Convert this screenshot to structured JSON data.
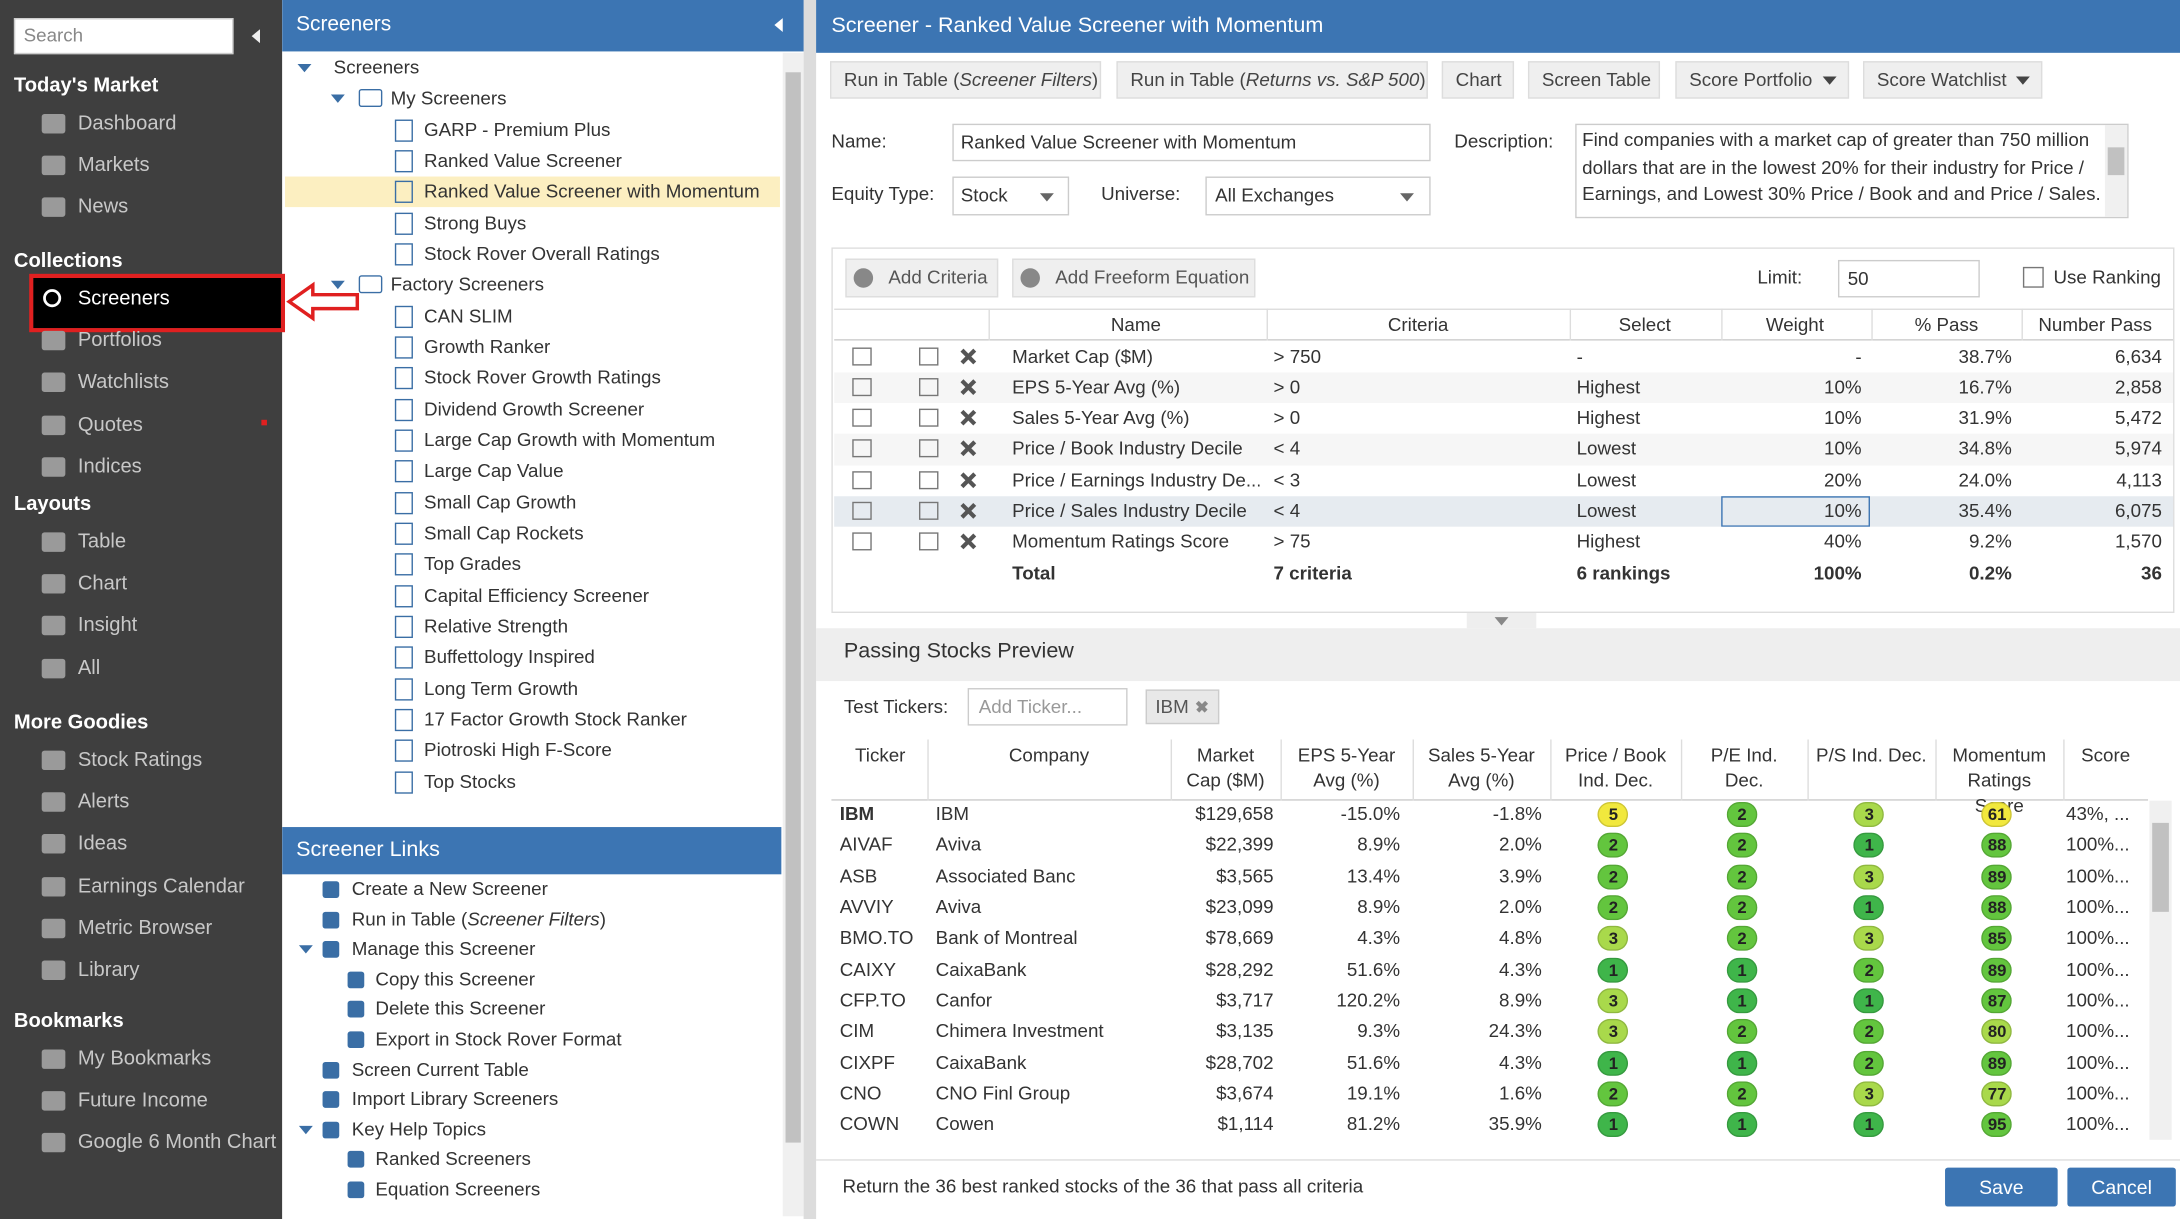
{
  "sidebar": {
    "search": "Search",
    "sections": [
      {
        "title": "Today's Market",
        "items": [
          "Dashboard",
          "Markets",
          "News"
        ]
      },
      {
        "title": "Collections",
        "items": [
          "Screeners",
          "Portfolios",
          "Watchlists",
          "Quotes",
          "Indices"
        ]
      },
      {
        "title": "Layouts",
        "items": [
          "Table",
          "Chart",
          "Insight",
          "All"
        ]
      },
      {
        "title": "More Goodies",
        "items": [
          "Stock Ratings",
          "Alerts",
          "Ideas",
          "Earnings Calendar",
          "Metric Browser",
          "Library"
        ]
      },
      {
        "title": "Bookmarks",
        "items": [
          "My Bookmarks",
          "Future Income",
          "Google 6 Month Chart"
        ]
      }
    ]
  },
  "screeners_panel": {
    "title": "Screeners",
    "root": "Screeners",
    "groups": [
      {
        "title": "My Screeners",
        "items": [
          "GARP - Premium Plus",
          "Ranked Value Screener",
          "Ranked Value Screener with Momentum",
          "Strong Buys",
          "Stock Rover Overall Ratings"
        ]
      },
      {
        "title": "Factory Screeners",
        "items": [
          "CAN SLIM",
          "Growth Ranker",
          "Stock Rover Growth Ratings",
          "Dividend Growth Screener",
          "Large Cap Growth with Momentum",
          "Large Cap Value",
          "Small Cap Growth",
          "Small Cap Rockets",
          "Top Grades",
          "Capital Efficiency Screener",
          "Relative Strength",
          "Buffettology Inspired",
          "Long Term Growth",
          "17 Factor Growth Stock Ranker",
          "Piotroski High F-Score",
          "Top Stocks"
        ]
      }
    ]
  },
  "links_panel": {
    "title": "Screener Links",
    "items": [
      {
        "text": "Create a New Screener"
      },
      {
        "text": [
          "Run in Table (",
          "Screener Filters",
          ")"
        ]
      },
      {
        "text": "Manage this Screener",
        "children": [
          "Copy this Screener",
          "Delete this Screener",
          "Export in Stock Rover Format"
        ]
      },
      {
        "text": "Screen Current Table"
      },
      {
        "text": "Import Library Screeners"
      },
      {
        "text": "Key Help Topics",
        "children": [
          "Ranked Screeners",
          "Equation Screeners"
        ]
      }
    ]
  },
  "main": {
    "title": "Screener - Ranked Value Screener with Momentum",
    "toolbar": [
      [
        "Run in Table (",
        "Screener Filters",
        ")"
      ],
      [
        "Run in Table (",
        "Returns vs. S&P 500",
        ")"
      ],
      "Chart",
      "Screen Table",
      "Score Portfolio",
      "Score Watchlist"
    ],
    "form": {
      "name_label": "Name:",
      "name": "Ranked Value Screener with Momentum",
      "equity_type_label": "Equity Type:",
      "equity_type": "Stock",
      "universe_label": "Universe:",
      "universe": "All Exchanges",
      "description_label": "Description:",
      "description": "Find companies with a market cap of greater than 750 million dollars that are in the lowest 20% for their industry for Price / Earnings, and Lowest 30% Price / Book and and Price / Sales."
    },
    "criteria": {
      "add_criteria": "Add Criteria",
      "add_equation": "Add Freeform Equation",
      "limit_label": "Limit:",
      "limit": "50",
      "use_ranking": "Use Ranking",
      "columns": [
        "Name",
        "Criteria",
        "Select",
        "Weight",
        "% Pass",
        "Number Pass"
      ],
      "rows": [
        [
          "Market Cap ($M)",
          "> 750",
          "-",
          "-",
          "38.7%",
          "6,634"
        ],
        [
          "EPS 5-Year Avg (%)",
          "> 0",
          "Highest",
          "10%",
          "16.7%",
          "2,858"
        ],
        [
          "Sales 5-Year Avg (%)",
          "> 0",
          "Highest",
          "10%",
          "31.9%",
          "5,472"
        ],
        [
          "Price / Book Industry Decile",
          "< 4",
          "Lowest",
          "10%",
          "34.8%",
          "5,974"
        ],
        [
          "Price / Earnings Industry De...",
          "< 3",
          "Lowest",
          "20%",
          "24.0%",
          "4,113"
        ],
        [
          "Price / Sales Industry Decile",
          "< 4",
          "Lowest",
          "10%",
          "35.4%",
          "6,075"
        ],
        [
          "Momentum Ratings Score",
          "> 75",
          "Highest",
          "40%",
          "9.2%",
          "1,570"
        ]
      ],
      "total": [
        "Total",
        "7 criteria",
        "6 rankings",
        "100%",
        "0.2%",
        "36"
      ]
    },
    "preview": {
      "title": "Passing Stocks Preview",
      "test_tickers_label": "Test Tickers:",
      "add_ticker": "Add Ticker...",
      "ticker_chip": "IBM",
      "columns": [
        "Ticker",
        "Company",
        "Market Cap ($M)",
        "EPS 5-Year Avg (%)",
        "Sales 5-Year Avg (%)",
        "Price / Book Ind. Dec.",
        "P/E Ind. Dec.",
        "P/S Ind. Dec.",
        "Momentum Ratings Score",
        "Score"
      ],
      "rows": [
        [
          "IBM",
          "IBM",
          "$129,658",
          "-15.0%",
          "-1.8%",
          "5",
          "2",
          "3",
          "61",
          "43%, ..."
        ],
        [
          "AIVAF",
          "Aviva",
          "$22,399",
          "8.9%",
          "2.0%",
          "2",
          "2",
          "1",
          "88",
          "100%..."
        ],
        [
          "ASB",
          "Associated Banc",
          "$3,565",
          "13.4%",
          "3.9%",
          "2",
          "2",
          "3",
          "89",
          "100%..."
        ],
        [
          "AVVIY",
          "Aviva",
          "$23,099",
          "8.9%",
          "2.0%",
          "2",
          "2",
          "1",
          "88",
          "100%..."
        ],
        [
          "BMO.TO",
          "Bank of Montreal",
          "$78,669",
          "4.3%",
          "4.8%",
          "3",
          "2",
          "3",
          "85",
          "100%..."
        ],
        [
          "CAIXY",
          "CaixaBank",
          "$28,292",
          "51.6%",
          "4.3%",
          "1",
          "1",
          "2",
          "89",
          "100%..."
        ],
        [
          "CFP.TO",
          "Canfor",
          "$3,717",
          "120.2%",
          "8.9%",
          "3",
          "1",
          "1",
          "87",
          "100%..."
        ],
        [
          "CIM",
          "Chimera Investment",
          "$3,135",
          "9.3%",
          "24.3%",
          "3",
          "2",
          "2",
          "80",
          "100%..."
        ],
        [
          "CIXPF",
          "CaixaBank",
          "$28,702",
          "51.6%",
          "4.3%",
          "1",
          "1",
          "2",
          "89",
          "100%..."
        ],
        [
          "CNO",
          "CNO Finl Group",
          "$3,674",
          "19.1%",
          "1.6%",
          "2",
          "2",
          "3",
          "77",
          "100%..."
        ],
        [
          "COWN",
          "Cowen",
          "$1,114",
          "81.2%",
          "35.9%",
          "1",
          "1",
          "1",
          "95",
          "100%..."
        ]
      ]
    },
    "footer": {
      "text": "Return the 36 best ranked stocks of the 36 that pass all criteria",
      "save": "Save",
      "cancel": "Cancel"
    }
  }
}
